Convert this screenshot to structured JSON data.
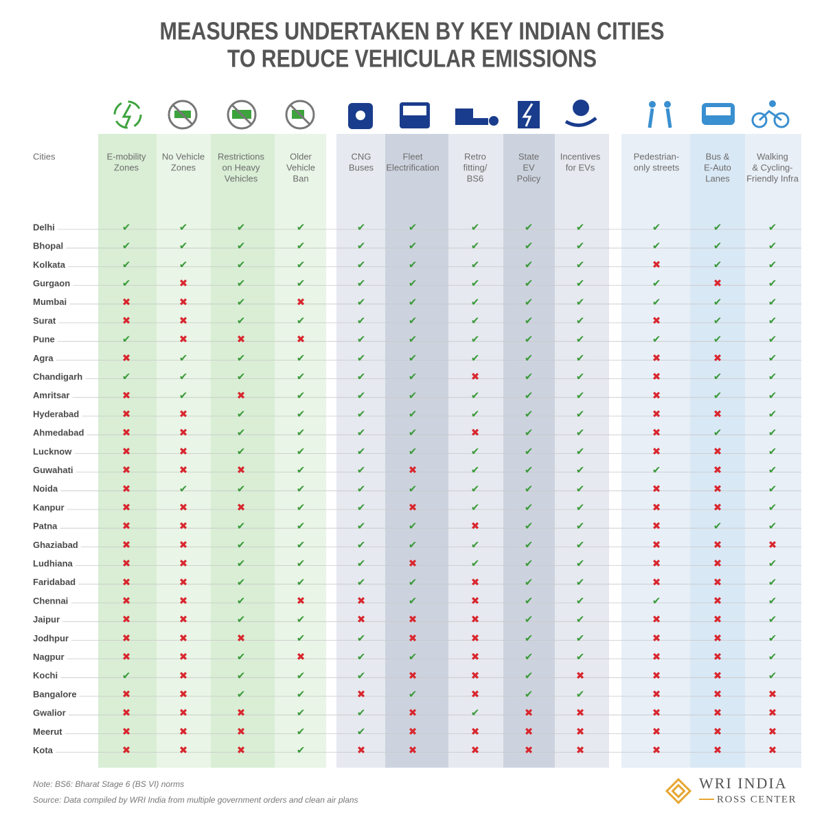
{
  "header": {
    "title_lines": [
      "MEASURES UNDERTAKEN BY KEY INDIAN CITIES",
      "TO REDUCE VEHICULAR EMISSIONS"
    ]
  },
  "table": {
    "corner": "Cities",
    "columns": [
      [
        "E-mobility",
        "Zones"
      ],
      [
        "No Vehicle",
        "Zones"
      ],
      [
        "Restrictions",
        "on Heavy",
        "Vehicles"
      ],
      [
        "Older",
        "Vehicle",
        "Ban"
      ],
      [
        "CNG",
        "Buses"
      ],
      [
        "Fleet",
        "Electrification"
      ],
      [
        "Retro",
        "fitting/",
        "BS6"
      ],
      [
        "State",
        "EV",
        "Policy"
      ],
      [
        "Incentives",
        "for EVs"
      ],
      [
        "Pedestrian-",
        "only streets"
      ],
      [
        "Bus &",
        "E-Auto",
        "Lanes"
      ],
      [
        "Walking",
        "& Cycling-",
        "Friendly Infra"
      ]
    ],
    "rows": [
      {
        "city": "Delhi",
        "cells": [
          "✔",
          "✔",
          "✔",
          "✔",
          "✔",
          "✔",
          "✔",
          "✔",
          "✔",
          "✔",
          "✔",
          "✔"
        ]
      },
      {
        "city": "Bhopal",
        "cells": [
          "✔",
          "✔",
          "✔",
          "✔",
          "✔",
          "✔",
          "✔",
          "✔",
          "✔",
          "✔",
          "✔",
          "✔"
        ]
      },
      {
        "city": "Kolkata",
        "cells": [
          "✔",
          "✔",
          "✔",
          "✔",
          "✔",
          "✔",
          "✔",
          "✔",
          "✔",
          "✖",
          "✔",
          "✔"
        ]
      },
      {
        "city": "Gurgaon",
        "cells": [
          "✔",
          "✖",
          "✔",
          "✔",
          "✔",
          "✔",
          "✔",
          "✔",
          "✔",
          "✔",
          "✖",
          "✔"
        ]
      },
      {
        "city": "Mumbai",
        "cells": [
          "✖",
          "✖",
          "✔",
          "✖",
          "✔",
          "✔",
          "✔",
          "✔",
          "✔",
          "✔",
          "✔",
          "✔"
        ]
      },
      {
        "city": "Surat",
        "cells": [
          "✖",
          "✖",
          "✔",
          "✔",
          "✔",
          "✔",
          "✔",
          "✔",
          "✔",
          "✖",
          "✔",
          "✔"
        ]
      },
      {
        "city": "Pune",
        "cells": [
          "✔",
          "✖",
          "✖",
          "✖",
          "✔",
          "✔",
          "✔",
          "✔",
          "✔",
          "✔",
          "✔",
          "✔"
        ]
      },
      {
        "city": "Agra",
        "cells": [
          "✖",
          "✔",
          "✔",
          "✔",
          "✔",
          "✔",
          "✔",
          "✔",
          "✔",
          "✖",
          "✖",
          "✔"
        ]
      },
      {
        "city": "Chandigarh",
        "cells": [
          "✔",
          "✔",
          "✔",
          "✔",
          "✔",
          "✔",
          "✖",
          "✔",
          "✔",
          "✖",
          "✔",
          "✔"
        ]
      },
      {
        "city": "Amritsar",
        "cells": [
          "✖",
          "✔",
          "✖",
          "✔",
          "✔",
          "✔",
          "✔",
          "✔",
          "✔",
          "✖",
          "✔",
          "✔"
        ]
      },
      {
        "city": "Hyderabad",
        "cells": [
          "✖",
          "✖",
          "✔",
          "✔",
          "✔",
          "✔",
          "✔",
          "✔",
          "✔",
          "✖",
          "✖",
          "✔"
        ]
      },
      {
        "city": "Ahmedabad",
        "cells": [
          "✖",
          "✖",
          "✔",
          "✔",
          "✔",
          "✔",
          "✖",
          "✔",
          "✔",
          "✖",
          "✔",
          "✔"
        ]
      },
      {
        "city": "Lucknow",
        "cells": [
          "✖",
          "✖",
          "✔",
          "✔",
          "✔",
          "✔",
          "✔",
          "✔",
          "✔",
          "✖",
          "✖",
          "✔"
        ]
      },
      {
        "city": "Guwahati",
        "cells": [
          "✖",
          "✖",
          "✖",
          "✔",
          "✔",
          "✖",
          "✔",
          "✔",
          "✔",
          "✔",
          "✖",
          "✔"
        ]
      },
      {
        "city": "Noida",
        "cells": [
          "✖",
          "✔",
          "✔",
          "✔",
          "✔",
          "✔",
          "✔",
          "✔",
          "✔",
          "✖",
          "✖",
          "✔"
        ]
      },
      {
        "city": "Kanpur",
        "cells": [
          "✖",
          "✖",
          "✖",
          "✔",
          "✔",
          "✖",
          "✔",
          "✔",
          "✔",
          "✖",
          "✖",
          "✔"
        ]
      },
      {
        "city": "Patna",
        "cells": [
          "✖",
          "✖",
          "✔",
          "✔",
          "✔",
          "✔",
          "✖",
          "✔",
          "✔",
          "✖",
          "✔",
          "✔"
        ]
      },
      {
        "city": "Ghaziabad",
        "cells": [
          "✖",
          "✖",
          "✔",
          "✔",
          "✔",
          "✔",
          "✔",
          "✔",
          "✔",
          "✖",
          "✖",
          "✖"
        ]
      },
      {
        "city": "Ludhiana",
        "cells": [
          "✖",
          "✖",
          "✔",
          "✔",
          "✔",
          "✖",
          "✔",
          "✔",
          "✔",
          "✖",
          "✖",
          "✔"
        ]
      },
      {
        "city": "Faridabad",
        "cells": [
          "✖",
          "✖",
          "✔",
          "✔",
          "✔",
          "✔",
          "✖",
          "✔",
          "✔",
          "✖",
          "✖",
          "✔"
        ]
      },
      {
        "city": "Chennai",
        "cells": [
          "✖",
          "✖",
          "✔",
          "✖",
          "✖",
          "✔",
          "✖",
          "✔",
          "✔",
          "✔",
          "✖",
          "✔"
        ]
      },
      {
        "city": "Jaipur",
        "cells": [
          "✖",
          "✖",
          "✔",
          "✔",
          "✖",
          "✖",
          "✖",
          "✔",
          "✔",
          "✖",
          "✖",
          "✔"
        ]
      },
      {
        "city": "Jodhpur",
        "cells": [
          "✖",
          "✖",
          "✖",
          "✔",
          "✔",
          "✖",
          "✖",
          "✔",
          "✔",
          "✖",
          "✖",
          "✔"
        ]
      },
      {
        "city": "Nagpur",
        "cells": [
          "✖",
          "✖",
          "✔",
          "✖",
          "✔",
          "✔",
          "✖",
          "✔",
          "✔",
          "✖",
          "✖",
          "✔"
        ]
      },
      {
        "city": "Kochi",
        "cells": [
          "✔",
          "✖",
          "✔",
          "✔",
          "✔",
          "✖",
          "✖",
          "✔",
          "✖",
          "✖",
          "✖",
          "✔"
        ]
      },
      {
        "city": "Bangalore",
        "cells": [
          "✖",
          "✖",
          "✔",
          "✔",
          "✖",
          "✔",
          "✖",
          "✔",
          "✔",
          "✖",
          "✖",
          "✖"
        ]
      },
      {
        "city": "Gwalior",
        "cells": [
          "✖",
          "✖",
          "✖",
          "✔",
          "✔",
          "✖",
          "✔",
          "✖",
          "✖",
          "✖",
          "✖",
          "✖"
        ]
      },
      {
        "city": "Meerut",
        "cells": [
          "✖",
          "✖",
          "✖",
          "✔",
          "✔",
          "✖",
          "✖",
          "✖",
          "✖",
          "✖",
          "✖",
          "✖"
        ]
      },
      {
        "city": "Kota",
        "cells": [
          "✖",
          "✖",
          "✖",
          "✔",
          "✖",
          "✖",
          "✖",
          "✖",
          "✖",
          "✖",
          "✖",
          "✖"
        ]
      }
    ]
  },
  "footer": {
    "note": "Note: BS6: Bharat Stage 6 (BS VI) norms",
    "source": "Source: Data compiled by WRI India from multiple government orders and clean air plans",
    "logo_top": "WRI INDIA",
    "logo_bottom": "ROSS CENTER"
  }
}
